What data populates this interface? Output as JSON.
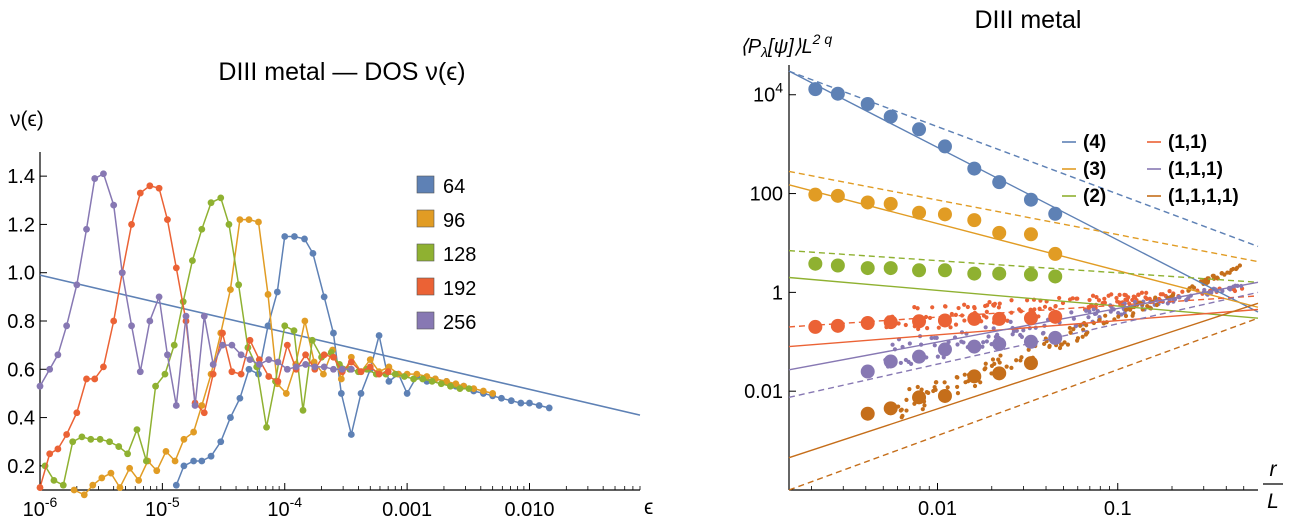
{
  "chart_data": [
    {
      "type": "line",
      "title": "DIII metal  —  DOS ν(ϵ)",
      "xlabel": "ϵ",
      "ylabel": "ν(ϵ)",
      "x_scale": "log",
      "xlim": [
        1e-06,
        0.08
      ],
      "ylim": [
        0.1,
        1.5
      ],
      "x_ticks": [
        {
          "v": 1e-06,
          "base": "10",
          "exp": "-6"
        },
        {
          "v": 1e-05,
          "base": "10",
          "exp": "-5"
        },
        {
          "v": 0.0001,
          "base": "10",
          "exp": "-4"
        },
        {
          "v": 0.001,
          "label": "0.001"
        },
        {
          "v": 0.01,
          "label": "0.010"
        }
      ],
      "y_ticks": [
        {
          "v": 0.2,
          "label": "0.2"
        },
        {
          "v": 0.4,
          "label": "0.4"
        },
        {
          "v": 0.6,
          "label": "0.6"
        },
        {
          "v": 0.8,
          "label": "0.8"
        },
        {
          "v": 1.0,
          "label": "1.0"
        },
        {
          "v": 1.2,
          "label": "1.2"
        },
        {
          "v": 1.4,
          "label": "1.4"
        }
      ],
      "legend_position": "right",
      "series": [
        {
          "name": "64",
          "color": "#5E81B5",
          "x": [
            1.3e-05,
            1.5e-05,
            1.8e-05,
            2.1e-05,
            2.5e-05,
            3e-05,
            3.6e-05,
            4.3e-05,
            5.1e-05,
            6.1e-05,
            7.3e-05,
            8.7e-05,
            0.0001,
            0.00012,
            0.000145,
            0.00017,
            0.00021,
            0.00025,
            0.00029,
            0.00035,
            0.00042,
            0.0005,
            0.00059,
            0.00071,
            0.00085,
            0.001,
            0.0012,
            0.00145,
            0.0017,
            0.0021,
            0.0025,
            0.0029,
            0.0035,
            0.0042,
            0.005,
            0.0059,
            0.0071,
            0.0085,
            0.01,
            0.012,
            0.0145
          ],
          "y": [
            0.12,
            0.2,
            0.22,
            0.22,
            0.24,
            0.3,
            0.4,
            0.48,
            0.6,
            0.58,
            0.78,
            0.92,
            1.15,
            1.15,
            1.14,
            1.08,
            0.9,
            0.75,
            0.5,
            0.33,
            0.5,
            0.6,
            0.74,
            0.55,
            0.58,
            0.5,
            0.57,
            0.55,
            0.56,
            0.55,
            0.53,
            0.53,
            0.51,
            0.5,
            0.49,
            0.48,
            0.47,
            0.46,
            0.46,
            0.45,
            0.44
          ]
        },
        {
          "name": "96",
          "color": "#E19C24",
          "x": [
            1.9e-06,
            2.3e-06,
            2.7e-06,
            3.2e-06,
            3.8e-06,
            4.5e-06,
            5.4e-06,
            6.4e-06,
            7.6e-06,
            9e-06,
            1.07e-05,
            1.27e-05,
            1.5e-05,
            1.8e-05,
            2.1e-05,
            2.5e-05,
            3e-05,
            3.6e-05,
            4.3e-05,
            5.1e-05,
            6.1e-05,
            7.3e-05,
            8.7e-05,
            0.000103,
            0.000123,
            0.000146,
            0.000174,
            0.000207,
            0.000246,
            0.00029,
            0.00035,
            0.00042,
            0.0005,
            0.00059,
            0.00071,
            0.00085,
            0.001,
            0.0012,
            0.00145,
            0.0017,
            0.0021,
            0.0025,
            0.0029,
            0.0035,
            0.0042,
            0.005
          ],
          "y": [
            0.1,
            0.08,
            0.12,
            0.15,
            0.17,
            0.11,
            0.19,
            0.14,
            0.22,
            0.18,
            0.26,
            0.22,
            0.31,
            0.34,
            0.45,
            0.58,
            0.75,
            0.93,
            1.22,
            1.22,
            1.21,
            0.91,
            0.54,
            0.5,
            0.62,
            0.8,
            0.63,
            0.58,
            0.68,
            0.56,
            0.65,
            0.59,
            0.64,
            0.59,
            0.61,
            0.58,
            0.58,
            0.58,
            0.57,
            0.56,
            0.55,
            0.54,
            0.53,
            0.52,
            0.51,
            0.5
          ]
        },
        {
          "name": "128",
          "color": "#8FB131",
          "x": [
            1.1e-06,
            1.3e-06,
            1.55e-06,
            1.85e-06,
            2.2e-06,
            2.6e-06,
            3.1e-06,
            3.7e-06,
            4.4e-06,
            5.2e-06,
            6.2e-06,
            7.4e-06,
            8.8e-06,
            1.05e-05,
            1.25e-05,
            1.48e-05,
            1.76e-05,
            2.1e-05,
            2.5e-05,
            3e-05,
            3.5e-05,
            4.2e-05,
            5e-05,
            5.9e-05,
            7.1e-05,
            8.4e-05,
            0.0001,
            0.000119,
            0.000141,
            0.000168,
            0.0002,
            0.00024,
            0.00028,
            0.00034,
            0.0004,
            0.00047,
            0.00056,
            0.00067,
            0.0008,
            0.00095,
            0.00113,
            0.00134,
            0.0016,
            0.0019,
            0.00226,
            0.0027,
            0.0032
          ],
          "y": [
            0.2,
            0.14,
            0.12,
            0.3,
            0.32,
            0.31,
            0.31,
            0.3,
            0.28,
            0.25,
            0.35,
            0.22,
            0.53,
            0.58,
            0.7,
            0.88,
            1.05,
            1.18,
            1.29,
            1.31,
            1.2,
            0.95,
            0.69,
            0.61,
            0.36,
            0.55,
            0.78,
            0.76,
            0.43,
            0.72,
            0.65,
            0.67,
            0.62,
            0.6,
            0.59,
            0.6,
            0.58,
            0.58,
            0.58,
            0.57,
            0.56,
            0.56,
            0.55,
            0.54,
            0.53,
            0.52,
            0.52
          ]
        },
        {
          "name": "192",
          "color": "#EB6235",
          "x": [
            1e-06,
            1.2e-06,
            1.4e-06,
            1.65e-06,
            2e-06,
            2.4e-06,
            2.8e-06,
            3.3e-06,
            4e-06,
            4.7e-06,
            5.6e-06,
            6.6e-06,
            7.9e-06,
            9.4e-06,
            1.1e-05,
            1.3e-05,
            1.56e-05,
            1.85e-05,
            2.2e-05,
            2.6e-05,
            3.1e-05,
            3.7e-05,
            4.4e-05,
            5.2e-05,
            6.2e-05,
            7.4e-05,
            8.8e-05,
            0.000105,
            0.000124,
            0.000148,
            0.000176,
            0.00021,
            0.00025,
            0.000295,
            0.00035,
            0.00042,
            0.0005,
            0.00059,
            0.0007
          ],
          "y": [
            0.11,
            0.25,
            0.27,
            0.33,
            0.42,
            0.56,
            0.56,
            0.61,
            0.8,
            1.0,
            1.2,
            1.33,
            1.36,
            1.35,
            1.22,
            1.02,
            0.8,
            0.46,
            0.42,
            0.58,
            0.75,
            0.59,
            0.58,
            0.72,
            0.64,
            0.57,
            0.55,
            0.7,
            0.6,
            0.66,
            0.6,
            0.66,
            0.65,
            0.59,
            0.63,
            0.59,
            0.61,
            0.58,
            0.59
          ]
        },
        {
          "name": "256",
          "color": "#8778B3",
          "x": [
            1e-06,
            1.2e-06,
            1.4e-06,
            1.65e-06,
            2e-06,
            2.4e-06,
            2.8e-06,
            3.3e-06,
            4e-06,
            4.7e-06,
            5.6e-06,
            6.6e-06,
            7.9e-06,
            9.4e-06,
            1.1e-05,
            1.3e-05,
            1.56e-05,
            1.85e-05,
            2.2e-05,
            2.6e-05,
            3.1e-05,
            3.7e-05,
            4.4e-05,
            5.2e-05,
            6.2e-05,
            7.4e-05,
            8.8e-05,
            0.000105,
            0.000124,
            0.000148,
            0.000176,
            0.00021,
            0.00025,
            0.000295,
            0.00035
          ],
          "y": [
            0.53,
            0.6,
            0.66,
            0.78,
            0.95,
            1.18,
            1.39,
            1.41,
            1.28,
            1.0,
            0.78,
            0.59,
            0.8,
            0.9,
            0.66,
            0.45,
            0.82,
            0.45,
            0.82,
            0.62,
            0.7,
            0.7,
            0.66,
            0.64,
            0.62,
            0.64,
            0.63,
            0.6,
            0.61,
            0.62,
            0.61,
            0.61,
            0.6,
            0.6,
            0.6
          ]
        }
      ],
      "fit_line": {
        "color": "#5E81B5",
        "x": [
          1e-06,
          0.08
        ],
        "y": [
          0.99,
          0.41
        ]
      }
    },
    {
      "type": "scatter",
      "title": "DIII  metal",
      "ylabel_parts": {
        "pre": "⟨P",
        "sub": "λ",
        "mid": "[ψ]⟩L",
        "sup": "2 q"
      },
      "xlabel_parts": {
        "num": "r",
        "den": "L"
      },
      "x_scale": "log",
      "y_scale": "log",
      "xlim": [
        0.0015,
        0.6
      ],
      "ylim": [
        0.0001,
        40000
      ],
      "x_ticks": [
        {
          "v": 0.01,
          "label": "0.01"
        },
        {
          "v": 0.1,
          "label": "0.1"
        }
      ],
      "y_ticks": [
        {
          "v": 10000,
          "base": "10",
          "exp": "4"
        },
        {
          "v": 100,
          "label": "100"
        },
        {
          "v": 1,
          "label": "1"
        },
        {
          "v": 0.01,
          "label": "0.01"
        }
      ],
      "legend_position": "top-right",
      "legend_rows": [
        [
          "(4)",
          "(1,1)"
        ],
        [
          "(3)",
          "(1,1,1)"
        ],
        [
          "(2)",
          "(1,1,1,1)"
        ]
      ],
      "series": [
        {
          "name": "(4)",
          "color": "#5E81B5",
          "x": [
            0.0021,
            0.0028,
            0.0041,
            0.0055,
            0.0079,
            0.011,
            0.016,
            0.022,
            0.033,
            0.045
          ],
          "y": [
            13000,
            10500,
            6500,
            3600,
            2000,
            900,
            320,
            170,
            75,
            39
          ]
        },
        {
          "name": "(3)",
          "color": "#E19C24",
          "x": [
            0.0021,
            0.0028,
            0.0041,
            0.0055,
            0.0079,
            0.011,
            0.016,
            0.022,
            0.033,
            0.045
          ],
          "y": [
            95,
            90,
            66,
            62,
            41,
            38,
            29,
            16,
            15,
            6
          ]
        },
        {
          "name": "(2)",
          "color": "#8FB131",
          "x": [
            0.0021,
            0.0028,
            0.0041,
            0.0055,
            0.0079,
            0.011,
            0.016,
            0.022,
            0.033,
            0.045
          ],
          "y": [
            3.8,
            3.5,
            3.1,
            3.1,
            2.8,
            2.8,
            2.4,
            2.4,
            2.3,
            2.1
          ]
        },
        {
          "name": "(1,1)",
          "color": "#EB6235",
          "x": [
            0.0021,
            0.0028,
            0.0041,
            0.0055,
            0.0079,
            0.011,
            0.016,
            0.022,
            0.033,
            0.045
          ],
          "y": [
            0.2,
            0.21,
            0.24,
            0.25,
            0.26,
            0.27,
            0.29,
            0.29,
            0.3,
            0.32
          ]
        },
        {
          "name": "(1,1,1)",
          "color": "#8778B3",
          "x": [
            0.0041,
            0.0055,
            0.0079,
            0.011,
            0.016,
            0.022,
            0.033,
            0.045
          ],
          "y": [
            0.025,
            0.04,
            0.05,
            0.07,
            0.08,
            0.09,
            0.1,
            0.12
          ]
        },
        {
          "name": "(1,1,1,1)",
          "color": "#C56E1A",
          "x": [
            0.0041,
            0.0055,
            0.0079,
            0.011,
            0.016,
            0.022,
            0.033
          ],
          "y": [
            0.0035,
            0.0045,
            0.0075,
            0.008,
            0.02,
            0.023,
            0.037
          ]
        }
      ],
      "lines": [
        {
          "color": "#5E81B5",
          "style": "solid",
          "x": [
            0.0015,
            0.6
          ],
          "y": [
            30000,
            0.4
          ]
        },
        {
          "color": "#5E81B5",
          "style": "dashed",
          "x": [
            0.0015,
            0.6
          ],
          "y": [
            30000,
            8.5
          ]
        },
        {
          "color": "#E19C24",
          "style": "solid",
          "x": [
            0.0015,
            0.6
          ],
          "y": [
            150,
            0.5
          ]
        },
        {
          "color": "#E19C24",
          "style": "dashed",
          "x": [
            0.0015,
            0.6
          ],
          "y": [
            280,
            4.2
          ]
        },
        {
          "color": "#8FB131",
          "style": "solid",
          "x": [
            0.0015,
            0.6
          ],
          "y": [
            2.0,
            0.3
          ]
        },
        {
          "color": "#8FB131",
          "style": "dashed",
          "x": [
            0.0015,
            0.6
          ],
          "y": [
            7.0,
            1.6
          ]
        },
        {
          "color": "#EB6235",
          "style": "solid",
          "x": [
            0.0015,
            0.6
          ],
          "y": [
            0.08,
            0.45
          ]
        },
        {
          "color": "#EB6235",
          "style": "dashed",
          "x": [
            0.0015,
            0.6
          ],
          "y": [
            0.2,
            0.85
          ]
        },
        {
          "color": "#8778B3",
          "style": "solid",
          "x": [
            0.0015,
            0.6
          ],
          "y": [
            0.027,
            1.6
          ]
        },
        {
          "color": "#8778B3",
          "style": "dashed",
          "x": [
            0.0015,
            0.6
          ],
          "y": [
            0.0075,
            1.0
          ]
        },
        {
          "color": "#C56E1A",
          "style": "solid",
          "x": [
            0.0015,
            0.6
          ],
          "y": [
            0.00045,
            0.6
          ]
        },
        {
          "color": "#C56E1A",
          "style": "dashed",
          "x": [
            0.0015,
            0.6
          ],
          "y": [
            0.0001,
            0.3
          ]
        }
      ],
      "dense_points": [
        {
          "color": "#EB6235",
          "x_range": [
            0.005,
            0.5
          ],
          "y_range": [
            0.25,
            1.2
          ]
        },
        {
          "color": "#8778B3",
          "x_range": [
            0.005,
            0.5
          ],
          "y_range": [
            0.05,
            1.4
          ]
        },
        {
          "color": "#C56E1A",
          "x_range": [
            0.006,
            0.5
          ],
          "y_range": [
            0.005,
            3.5
          ]
        }
      ]
    }
  ]
}
